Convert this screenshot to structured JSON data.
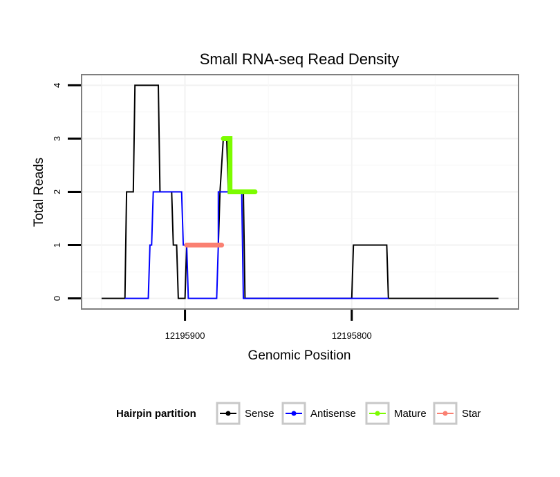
{
  "chart_data": {
    "type": "line",
    "title": "Small RNA-seq Read Density",
    "xlabel": "Genomic Position",
    "ylabel": "Total Reads",
    "x_reversed": true,
    "xlim": [
      12195962,
      12195700
    ],
    "ylim": [
      -0.2,
      4.2
    ],
    "x_ticks": [
      12195900,
      12195800
    ],
    "x_tick_labels": [
      "12195900",
      "12195800"
    ],
    "y_ticks": [
      0,
      1,
      2,
      3,
      4
    ],
    "y_tick_labels": [
      "0",
      "1",
      "2",
      "3",
      "4"
    ],
    "grid": true,
    "legend": {
      "title": "Hairpin partition",
      "placement": "bottom",
      "entries": [
        {
          "label": "Sense",
          "color": "#000000"
        },
        {
          "label": "Antisense",
          "color": "#0000ff"
        },
        {
          "label": "Mature",
          "color": "#7cfc00"
        },
        {
          "label": "Star",
          "color": "#fa8072"
        }
      ]
    },
    "series": [
      {
        "name": "Sense",
        "color": "#000000",
        "points": [
          [
            12195950,
            0
          ],
          [
            12195936,
            0
          ],
          [
            12195935,
            2
          ],
          [
            12195931,
            2
          ],
          [
            12195930,
            4
          ],
          [
            12195916,
            4
          ],
          [
            12195915,
            2
          ],
          [
            12195908,
            2
          ],
          [
            12195907,
            1
          ],
          [
            12195905,
            1
          ],
          [
            12195904,
            0
          ],
          [
            12195900,
            0
          ],
          [
            12195899,
            1
          ],
          [
            12195880,
            1
          ],
          [
            12195879,
            2
          ],
          [
            12195877,
            3
          ],
          [
            12195875,
            3
          ],
          [
            12195874,
            2
          ],
          [
            12195865,
            2
          ],
          [
            12195864,
            0
          ],
          [
            12195800,
            0
          ],
          [
            12195799,
            1
          ],
          [
            12195779,
            1
          ],
          [
            12195778,
            0
          ],
          [
            12195712,
            0
          ]
        ]
      },
      {
        "name": "Antisense",
        "color": "#0000ff",
        "points": [
          [
            12195936,
            0
          ],
          [
            12195922,
            0
          ],
          [
            12195921,
            1
          ],
          [
            12195920,
            1
          ],
          [
            12195919,
            2
          ],
          [
            12195902,
            2
          ],
          [
            12195901,
            1
          ],
          [
            12195899,
            1
          ],
          [
            12195898,
            0
          ],
          [
            12195881,
            0
          ],
          [
            12195880,
            1
          ],
          [
            12195880,
            2
          ],
          [
            12195866,
            2
          ],
          [
            12195865,
            0
          ],
          [
            12195799,
            0
          ],
          [
            12195778,
            0
          ]
        ]
      },
      {
        "name": "Mature",
        "color": "#7cfc00",
        "points": [
          [
            12195877,
            3
          ],
          [
            12195873,
            3
          ],
          [
            12195873,
            2
          ],
          [
            12195858,
            2
          ]
        ]
      },
      {
        "name": "Star",
        "color": "#fa8072",
        "points": [
          [
            12195899,
            1
          ],
          [
            12195878,
            1
          ]
        ]
      }
    ]
  }
}
